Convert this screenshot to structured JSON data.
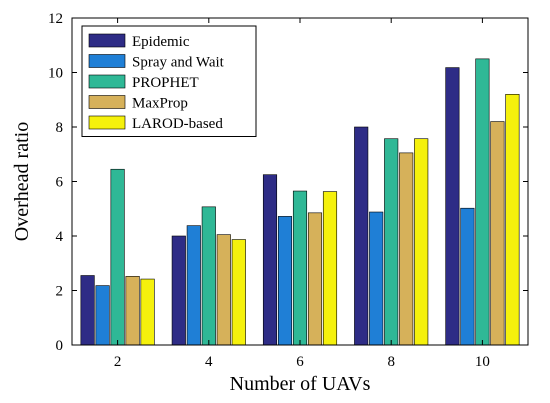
{
  "chart_data": {
    "type": "bar",
    "title": "",
    "xlabel": "Number of UAVs",
    "ylabel": "Overhead ratio",
    "categories": [
      "2",
      "4",
      "6",
      "8",
      "10"
    ],
    "ylim": [
      0,
      12
    ],
    "yticks": [
      0,
      2,
      4,
      6,
      8,
      10,
      12
    ],
    "grid": false,
    "legend_position": "top-left",
    "series": [
      {
        "name": "Epidemic",
        "color": "#2e2c86",
        "values": [
          2.55,
          4.0,
          6.25,
          8.0,
          10.18
        ]
      },
      {
        "name": "Spray and Wait",
        "color": "#1f7fd6",
        "values": [
          2.18,
          4.38,
          4.72,
          4.88,
          5.02
        ]
      },
      {
        "name": "PROPHET",
        "color": "#2fb896",
        "values": [
          6.45,
          5.07,
          5.65,
          7.57,
          10.5
        ]
      },
      {
        "name": "MaxProp",
        "color": "#d6b15a",
        "values": [
          2.52,
          4.05,
          4.85,
          7.05,
          8.2
        ]
      },
      {
        "name": "LAROD-based",
        "color": "#f5f10c",
        "values": [
          2.42,
          3.87,
          5.63,
          7.57,
          9.2
        ]
      }
    ]
  }
}
